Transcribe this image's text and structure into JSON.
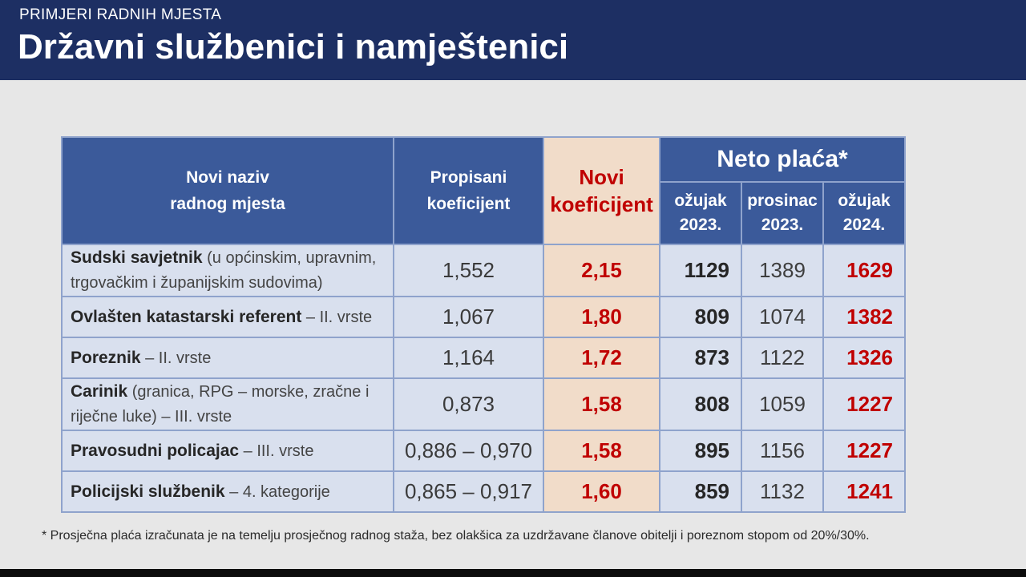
{
  "header": {
    "subtitle": "PRIMJERI RADNIH MJESTA",
    "title": "Državni službenici i namještenici"
  },
  "table": {
    "col_name_1": "Novi naziv",
    "col_name_2": "radnog mjesta",
    "col_prop_1": "Propisani",
    "col_prop_2": "koeficijent",
    "col_novi_1": "Novi",
    "col_novi_2": "koeficijent",
    "col_neto": "Neto plaća*",
    "sub_cols": [
      {
        "l1": "ožujak",
        "l2": "2023."
      },
      {
        "l1": "prosinac",
        "l2": "2023."
      },
      {
        "l1": "ožujak",
        "l2": "2024."
      }
    ],
    "rows": [
      {
        "name_bold": "Sudski savjetnik",
        "name_rest": " (u općinskim, upravnim, trgovačkim i županijskim sudovima)",
        "propisani": "1,552",
        "novi": "2,15",
        "mar23": "1129",
        "dec23": "1389",
        "mar24": "1629"
      },
      {
        "name_bold": "Ovlašten katastarski referent",
        "name_rest": " – II. vrste",
        "propisani": "1,067",
        "novi": "1,80",
        "mar23": "809",
        "dec23": "1074",
        "mar24": "1382"
      },
      {
        "name_bold": "Poreznik",
        "name_rest": " – II. vrste",
        "propisani": "1,164",
        "novi": "1,72",
        "mar23": "873",
        "dec23": "1122",
        "mar24": "1326"
      },
      {
        "name_bold": "Carinik",
        "name_rest": " (granica, RPG – morske, zračne i riječne luke) – III. vrste",
        "propisani": "0,873",
        "novi": "1,58",
        "mar23": "808",
        "dec23": "1059",
        "mar24": "1227"
      },
      {
        "name_bold": "Pravosudni policajac",
        "name_rest": " – III. vrste",
        "propisani": "0,886 – 0,970",
        "novi": "1,58",
        "mar23": "895",
        "dec23": "1156",
        "mar24": "1227"
      },
      {
        "name_bold": "Policijski službenik",
        "name_rest": " – 4. kategorije",
        "propisani": "0,865 – 0,917",
        "novi": "1,60",
        "mar23": "859",
        "dec23": "1132",
        "mar24": "1241"
      }
    ]
  },
  "footnote": "* Prosječna plaća izračunata je na temelju prosječnog radnog staža, bez olakšica za uzdržavane članove obitelji i poreznom stopom od 20%/30%."
}
